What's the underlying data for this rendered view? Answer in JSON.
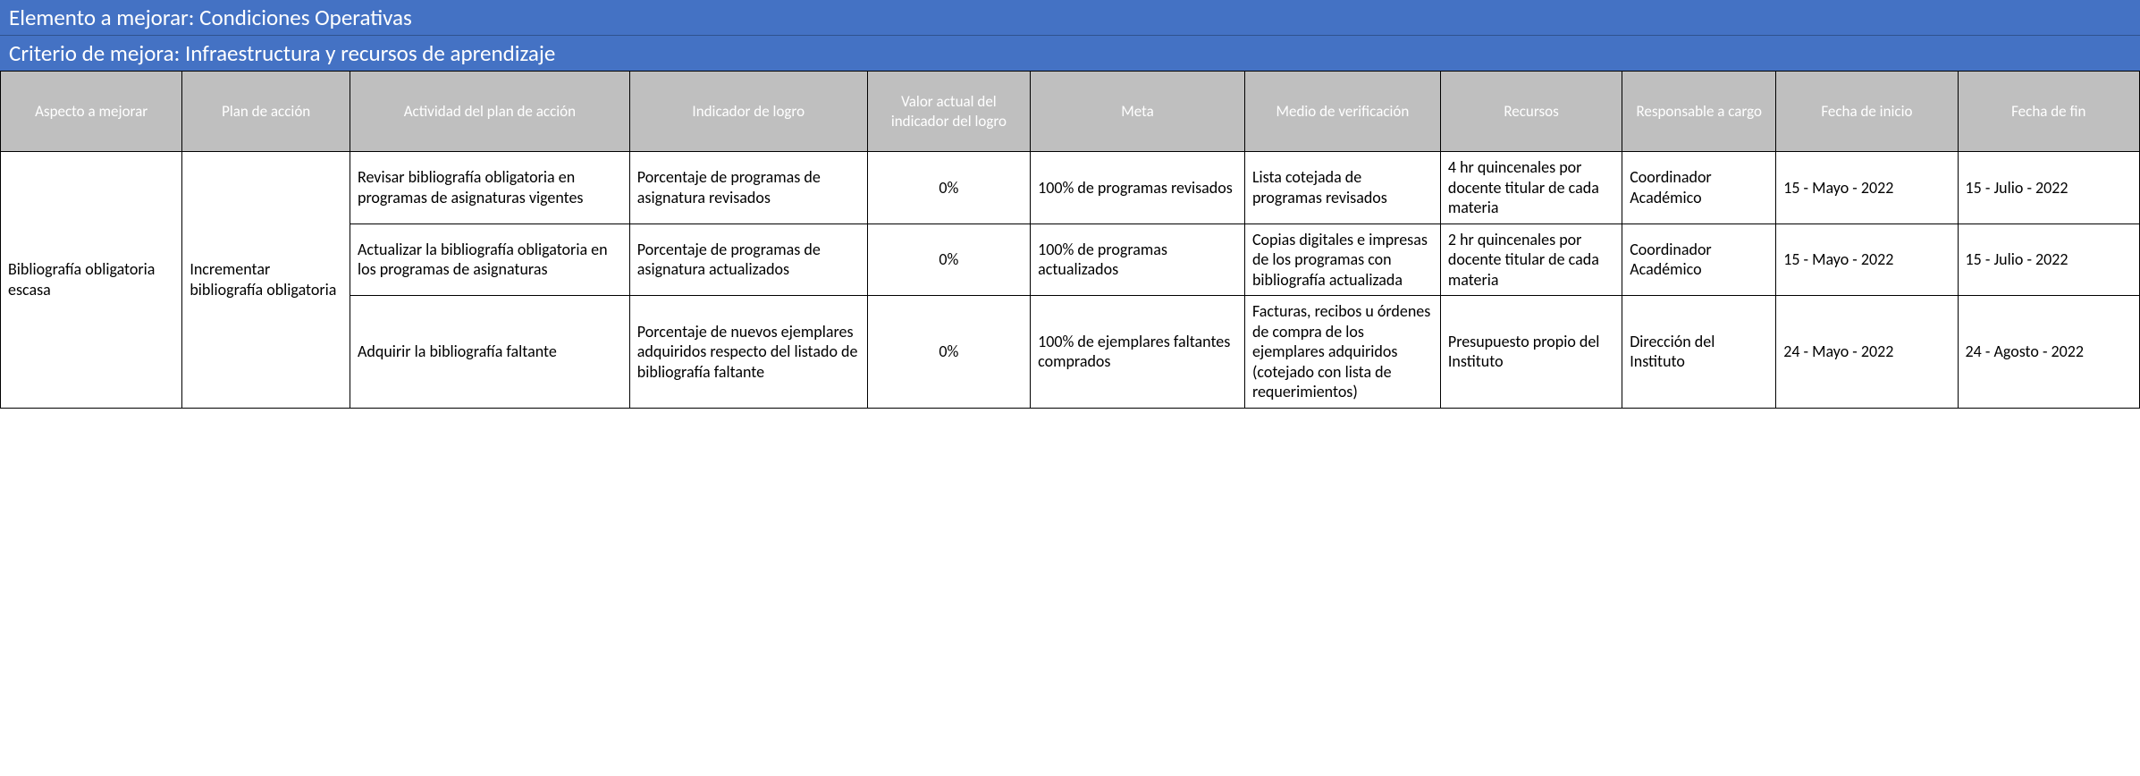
{
  "banner": {
    "elemento_label": "Elemento a mejorar:",
    "elemento_value": "Condiciones Operativas",
    "criterio_label": "Criterio de mejora:",
    "criterio_value": "Infraestructura y recursos de aprendizaje"
  },
  "columns": [
    "Aspecto a mejorar",
    "Plan de acción",
    "Actividad del plan de acción",
    "Indicador de logro",
    "Valor actual del indicador del logro",
    "Meta",
    "Medio de verificación",
    "Recursos",
    "Responsable a cargo",
    "Fecha de inicio",
    "Fecha de fin"
  ],
  "aspecto": "Bibliografía obligatoria escasa",
  "plan": "Incrementar bibliografía obligatoria",
  "rows": [
    {
      "actividad": "Revisar bibliografía obligatoria en programas de asignaturas vigentes",
      "indicador": "Porcentaje de programas de asignatura revisados",
      "valor_actual": "0%",
      "meta": "100% de programas revisados",
      "medio": "Lista cotejada de programas revisados",
      "recursos": "4 hr quincenales por docente titular de cada materia",
      "responsable": "Coordinador Académico",
      "fecha_inicio": "15 - Mayo - 2022",
      "fecha_fin": "15 - Julio - 2022"
    },
    {
      "actividad": "Actualizar la bibliografía obligatoria en los programas de asignaturas",
      "indicador": "Porcentaje de programas de asignatura actualizados",
      "valor_actual": "0%",
      "meta": "100% de programas actualizados",
      "medio": "Copias digitales e impresas de los programas con bibliografía actualizada",
      "recursos": "2 hr quincenales por docente titular de cada materia",
      "responsable": "Coordinador Académico",
      "fecha_inicio": "15 - Mayo - 2022",
      "fecha_fin": "15 - Julio - 2022"
    },
    {
      "actividad": "Adquirir la bibliografía faltante",
      "indicador": "Porcentaje de nuevos ejemplares adquiridos respecto del listado de bibliografía faltante",
      "valor_actual": "0%",
      "meta": "100% de ejemplares faltantes comprados",
      "medio": "Facturas, recibos u órdenes de compra de los ejemplares adquiridos (cotejado con lista de requerimientos)",
      "recursos": "Presupuesto propio del Instituto",
      "responsable": "Dirección del Instituto",
      "fecha_inicio": "24 - Mayo - 2022",
      "fecha_fin": "24 - Agosto - 2022"
    }
  ],
  "styling": {
    "banner_bg": "#4472c4",
    "banner_text": "#ffffff",
    "header_bg": "#bfbfbf",
    "header_text": "#ffffff",
    "cell_bg": "#ffffff",
    "border_color": "#000000",
    "banner_fontsize": 25,
    "header_fontsize": 17,
    "cell_fontsize": 18
  }
}
